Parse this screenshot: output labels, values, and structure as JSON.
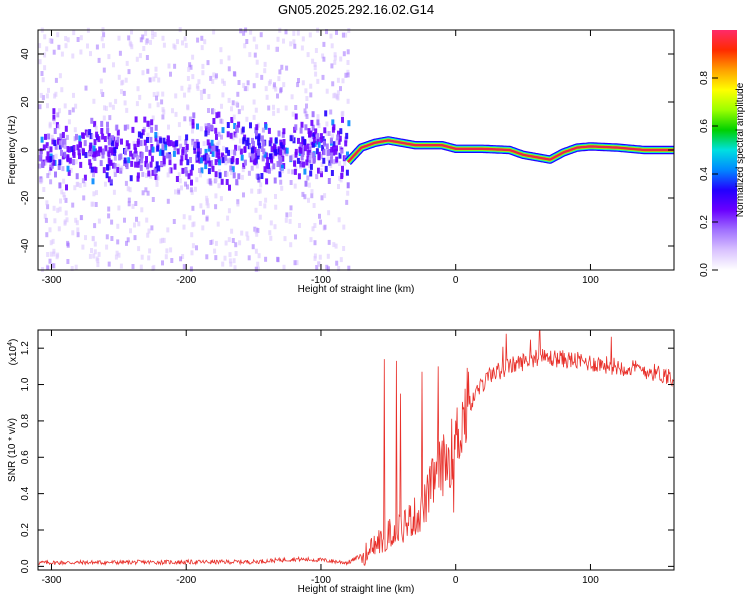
{
  "title": "GN05.2025.292.16.02.G14",
  "colors": {
    "snr_line": "#e8302a",
    "track": "#e8264a",
    "colormap": [
      "#ffffff",
      "#d9c2ff",
      "#a070ff",
      "#6a00ff",
      "#2200ff",
      "#0088ff",
      "#00e0e0",
      "#00d000",
      "#9cff00",
      "#ffff00",
      "#ffa000",
      "#ff2a00",
      "#ff2a6a"
    ]
  },
  "chart_data": [
    {
      "type": "heatmap",
      "name": "spectrogram",
      "xlabel": "Height of straight line (km)",
      "ylabel": "Frequency (Hz)",
      "xlim": [
        -310,
        162
      ],
      "ylim": [
        -50,
        50
      ],
      "x_ticks": [
        -300,
        -200,
        -100,
        0,
        100
      ],
      "y_ticks": [
        -40,
        -20,
        0,
        20,
        40
      ],
      "noise_region_x": [
        -310,
        -80
      ],
      "track": {
        "x": [
          -80,
          -70,
          -60,
          -50,
          -40,
          -30,
          -20,
          -10,
          0,
          20,
          40,
          50,
          60,
          70,
          80,
          90,
          100,
          120,
          140,
          162
        ],
        "freq": [
          -5,
          1,
          3,
          4,
          3,
          2,
          2,
          2,
          0.5,
          0.5,
          0,
          -2,
          -3,
          -4,
          -1,
          1,
          1.5,
          1,
          0,
          0
        ]
      },
      "colorbar": {
        "label": "Normalized spectral amplitude",
        "range": [
          0,
          1
        ],
        "ticks": [
          "0.0",
          "0.2",
          "0.4",
          "0.6",
          "0.8"
        ]
      }
    },
    {
      "type": "line",
      "name": "snr",
      "xlabel": "Height of straight line (km)",
      "ylabel": "SNR (10 * v/v)",
      "scale_label_base": "(x10",
      "scale_label_exp": "4",
      "scale_label_end": ")",
      "xlim": [
        -310,
        162
      ],
      "ylim": [
        -0.02,
        1.3
      ],
      "x_ticks": [
        -300,
        -200,
        -100,
        0,
        100
      ],
      "y_ticks": [
        "0.0",
        "0.2",
        "0.4",
        "0.6",
        "0.8",
        "1.0",
        "1.2"
      ],
      "envelope": {
        "x": [
          -310,
          -150,
          -120,
          -100,
          -80,
          -65,
          -55,
          -45,
          -35,
          -25,
          -15,
          -5,
          0,
          5,
          15,
          25,
          40,
          60,
          80,
          100,
          120,
          140,
          162
        ],
        "y": [
          0.02,
          0.025,
          0.04,
          0.035,
          0.02,
          0.08,
          0.15,
          0.2,
          0.25,
          0.3,
          0.5,
          0.6,
          0.68,
          0.82,
          0.95,
          1.05,
          1.1,
          1.15,
          1.14,
          1.12,
          1.1,
          1.08,
          1.04
        ]
      },
      "spikes": [
        {
          "x": -53,
          "y": 1.14
        },
        {
          "x": -44,
          "y": 1.13
        },
        {
          "x": -41,
          "y": 0.95
        },
        {
          "x": -25,
          "y": 1.07
        },
        {
          "x": -13,
          "y": 1.1
        }
      ]
    }
  ]
}
